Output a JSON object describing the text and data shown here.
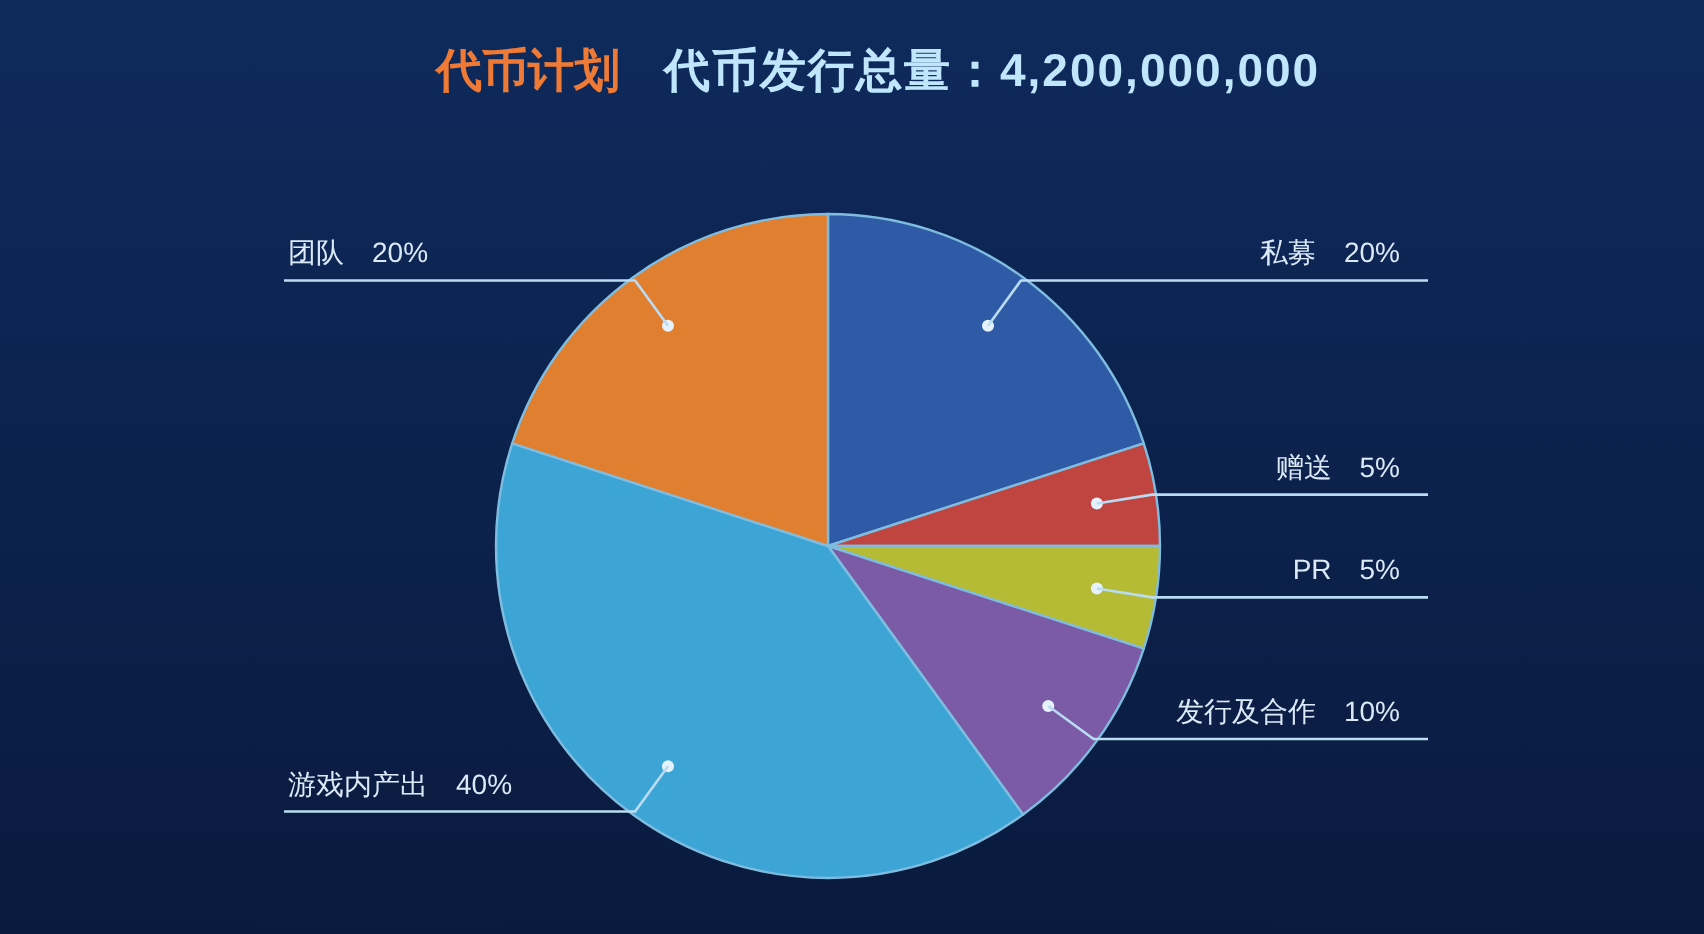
{
  "chart_data": {
    "type": "pie",
    "title": "代币计划",
    "subtitle": "代币发行总量：4,200,000,000",
    "categories": [
      "私募",
      "赠送",
      "PR",
      "发行及合作",
      "游戏内产出",
      "团队"
    ],
    "values": [
      20,
      5,
      5,
      10,
      40,
      20
    ],
    "value_labels": [
      "20%",
      "5%",
      "5%",
      "10%",
      "40%",
      "20%"
    ],
    "colors": [
      "#2f5aa5",
      "#c0443f",
      "#b5bb35",
      "#7b5ba6",
      "#3da5d5",
      "#e07f30"
    ]
  }
}
